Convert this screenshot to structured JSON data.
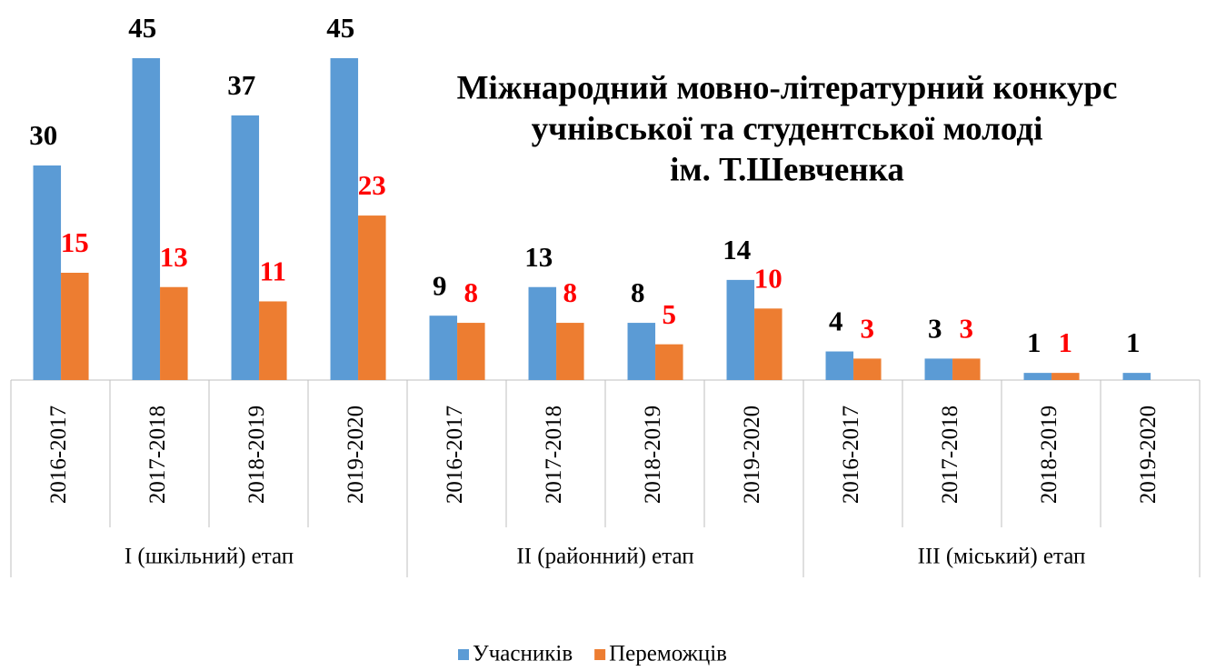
{
  "chart_data": {
    "type": "bar",
    "title": [
      "Міжнародний мовно-літературний конкурс",
      "учнівської та студентської молоді",
      "ім. Т.Шевченка"
    ],
    "categories": [
      "2016-2017",
      "2017-2018",
      "2018-2019",
      "2019-2020",
      "2016-2017",
      "2017-2018",
      "2018-2019",
      "2019-2020",
      "2016-2017",
      "2017-2018",
      "2018-2019",
      "2019-2020"
    ],
    "groups": [
      "I (шкільний) етап",
      "II (районний) етап",
      "III (міський) етап"
    ],
    "series": [
      {
        "name": "Учасників",
        "color": "#5b9bd5",
        "label_color": "#000000",
        "values": [
          30,
          45,
          37,
          45,
          9,
          13,
          8,
          14,
          4,
          3,
          1,
          1
        ]
      },
      {
        "name": "Переможців",
        "color": "#ed7d31",
        "label_color": "#ff0000",
        "values": [
          15,
          13,
          11,
          23,
          8,
          8,
          5,
          10,
          3,
          3,
          1,
          null
        ]
      }
    ],
    "ylim": [
      0,
      45
    ],
    "legend": "bottom"
  }
}
